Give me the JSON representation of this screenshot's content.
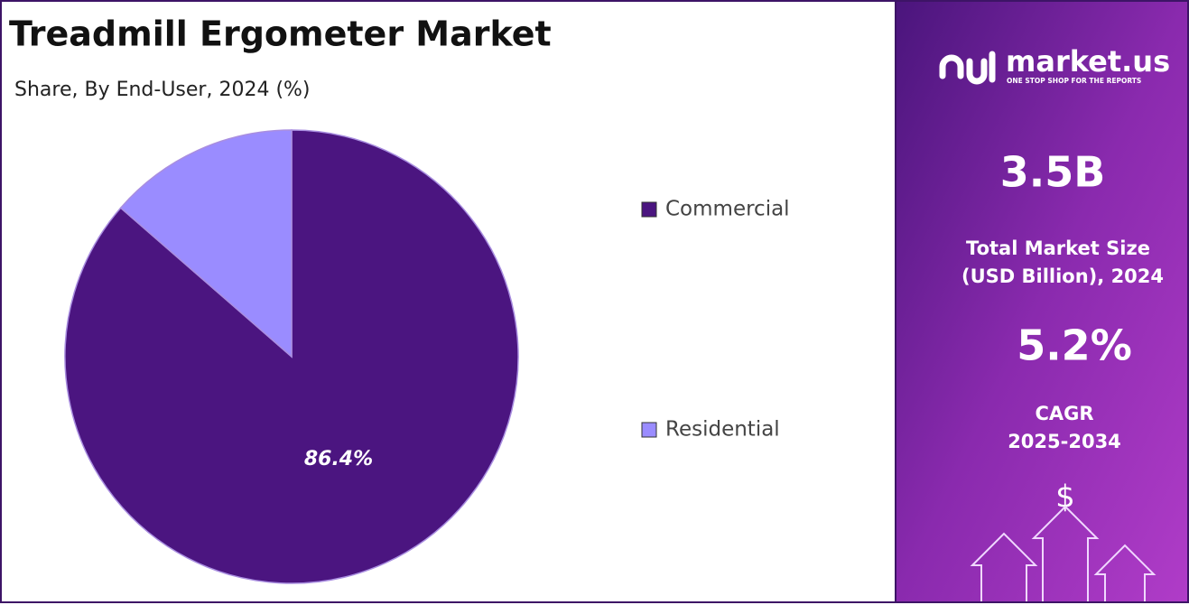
{
  "chart_data": {
    "type": "pie",
    "title": "Treadmill Ergometer Market",
    "subtitle": "Share, By End-User, 2024 (%)",
    "categories": [
      "Commercial",
      "Residential"
    ],
    "values": [
      86.4,
      13.6
    ],
    "value_labels": [
      "86.4%",
      null
    ],
    "colors": [
      "#4b1580",
      "#9a8cff"
    ]
  },
  "panel": {
    "brand": "market.us",
    "tagline": "ONE STOP SHOP FOR THE REPORTS",
    "stats": [
      {
        "value": "3.5B",
        "label_lines": [
          "Total Market Size",
          "(USD Billion), 2024"
        ]
      },
      {
        "value": "5.2%",
        "label_lines": [
          "CAGR",
          "2025-2034"
        ]
      }
    ],
    "icon": "$"
  }
}
